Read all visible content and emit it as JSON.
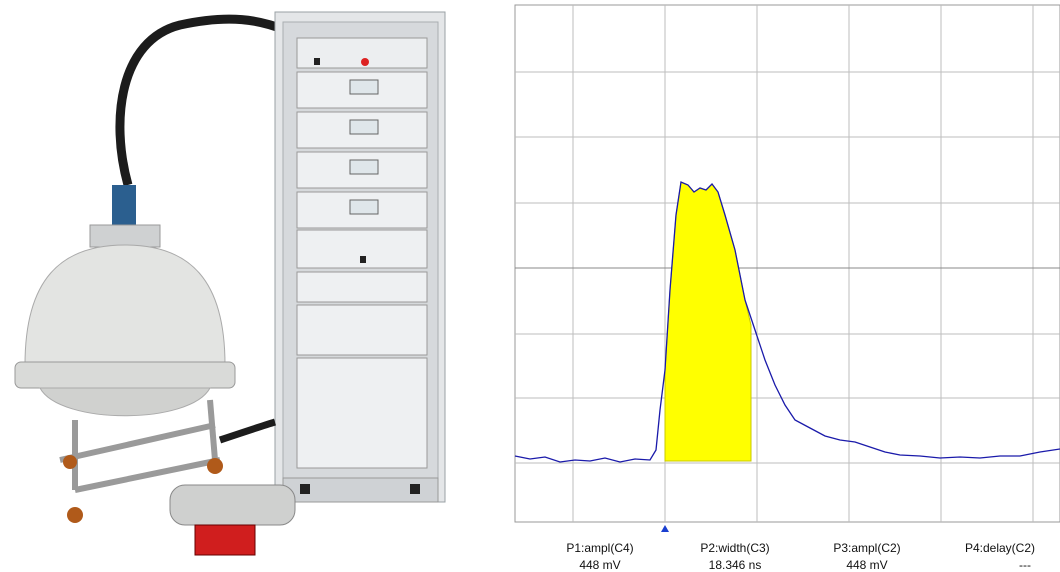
{
  "measurements": [
    {
      "label": "P1:ampl(C4)",
      "value": "448 mV"
    },
    {
      "label": "P2:width(C3)",
      "value": "18.346 ns"
    },
    {
      "label": "P3:ampl(C2)",
      "value": "448 mV"
    },
    {
      "label": "P4:delay(C2)",
      "value": "---"
    }
  ]
}
